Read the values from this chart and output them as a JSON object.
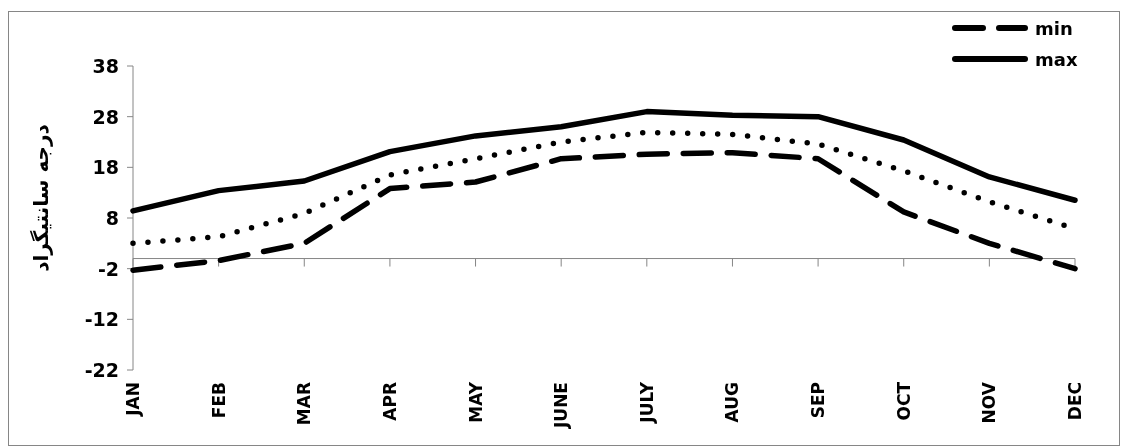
{
  "chart_data": {
    "type": "line",
    "ylabel": "درجه سانتیگراد",
    "categories": [
      "JAN",
      "FEB",
      "MAR",
      "APR",
      "MAY",
      "JUNE",
      "JULY",
      "AUG",
      "SEP",
      "OCT",
      "NOV",
      "DEC"
    ],
    "series": [
      {
        "name": "min",
        "color": "#000000",
        "line_style": "dashed",
        "values": [
          -2.3,
          -0.4,
          3.0,
          13.8,
          15.1,
          19.7,
          20.6,
          20.9,
          19.7,
          9.2,
          3.0,
          -2.0
        ]
      },
      {
        "name": "max",
        "color": "#000000",
        "line_style": "solid",
        "values": [
          9.4,
          13.4,
          15.3,
          21.1,
          24.2,
          26.0,
          29.0,
          28.3,
          28.0,
          23.4,
          16.1,
          11.5
        ]
      },
      {
        "color": "#000000",
        "line_style": "dotted",
        "values": [
          3.0,
          4.3,
          8.9,
          16.5,
          19.7,
          23.0,
          24.9,
          24.5,
          22.6,
          17.3,
          11.2,
          5.9
        ]
      }
    ],
    "ylim": [
      -22,
      38
    ],
    "yticks": [
      -22,
      -12,
      -2,
      8,
      18,
      28,
      38
    ],
    "grid": false,
    "legend": "top right",
    "marker": "none"
  }
}
